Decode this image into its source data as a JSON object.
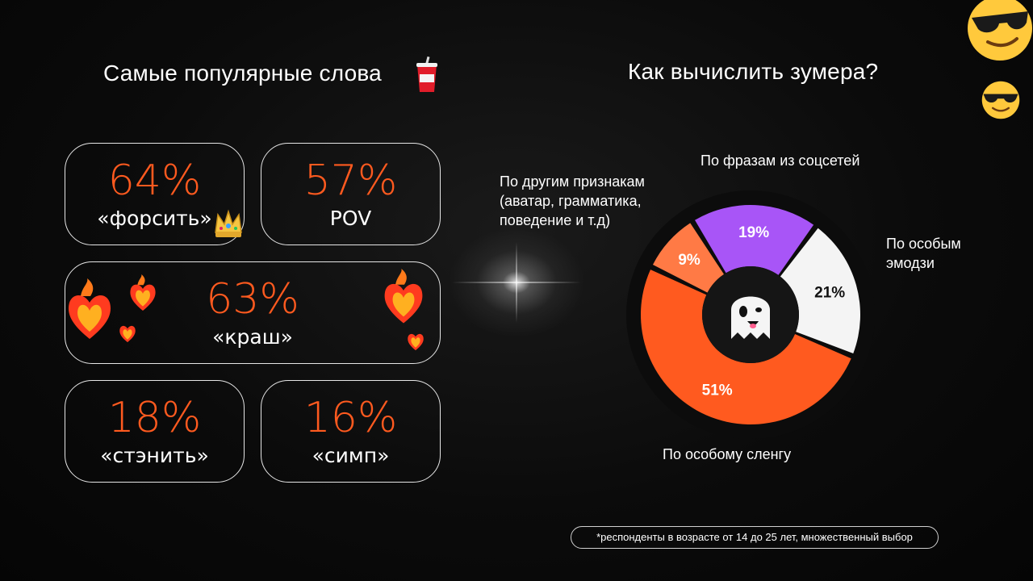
{
  "left": {
    "title": "Самые популярные слова",
    "cards": [
      {
        "pct": "64%",
        "word": "«форсить»"
      },
      {
        "pct": "57%",
        "word": "POV"
      },
      {
        "pct": "63%",
        "word": "«краш»"
      },
      {
        "pct": "18%",
        "word": "«стэнить»"
      },
      {
        "pct": "16%",
        "word": "«симп»"
      }
    ]
  },
  "right": {
    "title": "Как вычислить зумера?",
    "labels": {
      "social": "По фразам из соцсетей",
      "other_1": "По другим признакам",
      "other_2": "(аватар, грамматика,",
      "other_3": "поведение и т.д)",
      "emoji_1": "По особым",
      "emoji_2": "эмодзи",
      "slang": "По особому сленгу"
    }
  },
  "chart_data": {
    "type": "pie",
    "title": "Как вычислить зумера?",
    "slices": [
      {
        "name": "По фразам из соцсетей",
        "value": 19,
        "label": "19%",
        "color": "#a855f7"
      },
      {
        "name": "По особым эмодзи",
        "value": 21,
        "label": "21%",
        "color": "#f4f4f4"
      },
      {
        "name": "По особому сленгу",
        "value": 51,
        "label": "51%",
        "color": "#ff5a1f"
      },
      {
        "name": "По другим признакам (аватар, грамматика, поведение и т.д)",
        "value": 9,
        "label": "9%",
        "color": "#ff7a45"
      }
    ]
  },
  "footnote": "*респонденты в возрасте от 14 до 25 лет, множественный выбор",
  "colors": {
    "accent": "#ff5a1f",
    "purple": "#a855f7",
    "white": "#f4f4f4"
  },
  "icons": [
    "soda-cup-icon",
    "crown-icon",
    "fire-heart-icon",
    "ghost-icon",
    "sunglasses-face-icon"
  ]
}
